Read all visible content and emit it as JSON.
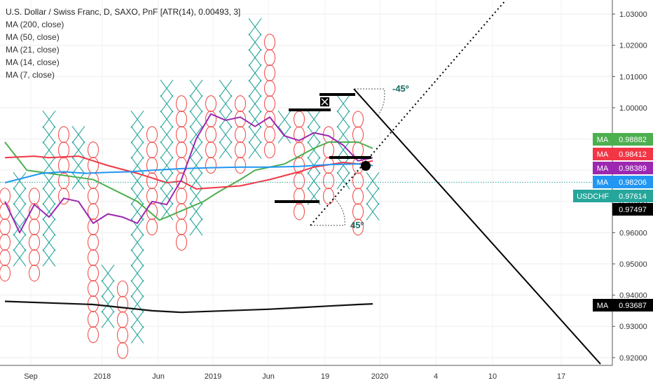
{
  "legend": {
    "symbol": "U.S. Dollar / Swiss Franc, D, SAXO, PnF [ATR(14), 0.00493, 3]",
    "ma200": "MA (200, close)",
    "ma50": "MA (50, close)",
    "ma21": "MA (21, close)",
    "ma14": "MA (14, close)",
    "ma7": "MA (7, close)"
  },
  "colors": {
    "x_mark": "#26a69a",
    "o_mark": "#ef5350",
    "ma200": "#111111",
    "ma50": "#4caf50",
    "ma21": "#f23645",
    "ma14": "#2196f3",
    "ma7": "#9c27b0",
    "trendline": "#000000",
    "arc": "#555555",
    "angle_text": "#1a6b63",
    "price_line": "#26a69a"
  },
  "chart_data": {
    "type": "point-and-figure",
    "box_size": 0.00493,
    "reversal": 3,
    "ylim": [
      0.9175,
      1.0345
    ],
    "y_ticks": [
      "1.03000",
      "1.02000",
      "1.01000",
      "1.00000",
      "0.99000",
      "0.98000",
      "0.97000",
      "0.96000",
      "0.95000",
      "0.94000",
      "0.93000",
      "0.92000"
    ],
    "x_ticks": [
      "Sep",
      "2018",
      "Jun",
      "2019",
      "Jun",
      "19",
      "2020",
      "4",
      "10",
      "17"
    ],
    "columns": [
      {
        "type": "O",
        "high": 0.9717,
        "low": 0.947
      },
      {
        "type": "X",
        "high": 0.9766,
        "low": 0.9519
      },
      {
        "type": "O",
        "high": 0.9717,
        "low": 0.947
      },
      {
        "type": "X",
        "high": 0.9963,
        "low": 0.9519
      },
      {
        "type": "O",
        "high": 0.9914,
        "low": 0.9716
      },
      {
        "type": "X",
        "high": 0.9914,
        "low": 0.9765
      },
      {
        "type": "O",
        "high": 0.9865,
        "low": 0.9273
      },
      {
        "type": "X",
        "high": 0.947,
        "low": 0.9322
      },
      {
        "type": "O",
        "high": 0.942,
        "low": 0.9223
      },
      {
        "type": "X",
        "high": 0.9963,
        "low": 0.9272
      },
      {
        "type": "O",
        "high": 0.9914,
        "low": 0.9618
      },
      {
        "type": "X",
        "high": 1.0062,
        "low": 0.9667
      },
      {
        "type": "O",
        "high": 1.0013,
        "low": 0.9569
      },
      {
        "type": "X",
        "high": 1.0062,
        "low": 0.9618
      },
      {
        "type": "O",
        "high": 1.0013,
        "low": 0.9815
      },
      {
        "type": "X",
        "high": 1.0062,
        "low": 0.9864
      },
      {
        "type": "O",
        "high": 1.0013,
        "low": 0.9815
      },
      {
        "type": "X",
        "high": 1.0259,
        "low": 0.9864
      },
      {
        "type": "O",
        "high": 1.021,
        "low": 0.9865
      },
      {
        "type": "X",
        "high": 0.9963,
        "low": 0.9913
      },
      {
        "type": "O",
        "high": 0.9963,
        "low": 0.9667
      },
      {
        "type": "X",
        "high": 0.9963,
        "low": 0.9717
      },
      {
        "type": "O",
        "high": 0.9914,
        "low": 0.9716
      },
      {
        "type": "X",
        "high": 1.0013,
        "low": 0.9766
      },
      {
        "type": "O",
        "high": 0.9963,
        "low": 0.9618
      },
      {
        "type": "X",
        "high": 0.9766,
        "low": 0.9667
      }
    ],
    "series": [
      {
        "name": "MA (200, close)",
        "points": [
          [
            0.938,
            0
          ],
          [
            0.937,
            6
          ],
          [
            0.935,
            10
          ],
          [
            0.9345,
            12
          ],
          [
            0.9355,
            18
          ],
          [
            0.936,
            20
          ],
          [
            0.9365,
            22
          ],
          [
            0.937,
            24
          ],
          [
            0.9372,
            25
          ]
        ]
      },
      {
        "name": "MA (50, close)",
        "points": [
          [
            0.989,
            0
          ],
          [
            0.98,
            1.5
          ],
          [
            0.979,
            3
          ],
          [
            0.977,
            6
          ],
          [
            0.97,
            9
          ],
          [
            0.964,
            10.5
          ],
          [
            0.967,
            12
          ],
          [
            0.97,
            13.5
          ],
          [
            0.973,
            14.5
          ],
          [
            0.977,
            16
          ],
          [
            0.98,
            17
          ],
          [
            0.982,
            19
          ],
          [
            0.987,
            21
          ],
          [
            0.989,
            22
          ],
          [
            0.989,
            24
          ],
          [
            0.987,
            25
          ]
        ]
      },
      {
        "name": "MA (21, close)",
        "points": [
          [
            0.984,
            0
          ],
          [
            0.9845,
            2
          ],
          [
            0.984,
            3
          ],
          [
            0.9845,
            5
          ],
          [
            0.9815,
            7
          ],
          [
            0.979,
            9
          ],
          [
            0.9775,
            10
          ],
          [
            0.976,
            11
          ],
          [
            0.9765,
            12
          ],
          [
            0.974,
            13
          ],
          [
            0.975,
            16
          ],
          [
            0.977,
            18
          ],
          [
            0.9795,
            20
          ],
          [
            0.981,
            21
          ],
          [
            0.9825,
            23
          ],
          [
            0.982,
            24
          ],
          [
            0.983,
            25
          ]
        ]
      },
      {
        "name": "MA (14, close)",
        "points": [
          [
            0.976,
            0
          ],
          [
            0.979,
            2.5
          ],
          [
            0.9795,
            4
          ],
          [
            0.979,
            5.5
          ],
          [
            0.9793,
            7
          ],
          [
            0.9795,
            8.5
          ],
          [
            0.98,
            10
          ],
          [
            0.9805,
            12
          ],
          [
            0.9808,
            14
          ],
          [
            0.981,
            16
          ],
          [
            0.981,
            18
          ],
          [
            0.9812,
            20
          ],
          [
            0.9818,
            22
          ],
          [
            0.982,
            24
          ],
          [
            0.9815,
            25
          ]
        ]
      },
      {
        "name": "MA (7, close)",
        "points": [
          [
            0.97,
            0
          ],
          [
            0.96,
            1
          ],
          [
            0.969,
            2
          ],
          [
            0.965,
            3
          ],
          [
            0.971,
            4
          ],
          [
            0.97,
            5
          ],
          [
            0.963,
            6
          ],
          [
            0.966,
            7
          ],
          [
            0.965,
            8
          ],
          [
            0.963,
            9
          ],
          [
            0.97,
            10
          ],
          [
            0.969,
            11
          ],
          [
            0.977,
            12
          ],
          [
            0.99,
            13
          ],
          [
            0.998,
            14
          ],
          [
            0.996,
            15
          ],
          [
            0.997,
            16
          ],
          [
            0.994,
            17
          ],
          [
            0.997,
            18
          ],
          [
            0.991,
            19
          ],
          [
            0.9895,
            20
          ],
          [
            0.992,
            21
          ],
          [
            0.991,
            22
          ],
          [
            0.988,
            23
          ],
          [
            0.983,
            24
          ],
          [
            0.984,
            25
          ]
        ]
      }
    ],
    "price_tags": [
      {
        "label": "MA",
        "value": "0.98882",
        "color": "#4caf50"
      },
      {
        "label": "MA",
        "value": "0.98412",
        "color": "#f23645"
      },
      {
        "label": "MA",
        "value": "0.98389",
        "color": "#9c27b0"
      },
      {
        "label": "MA",
        "value": "0.98206",
        "color": "#2196f3"
      },
      {
        "label": "USDCHF",
        "value": "0.97614",
        "color": "#26a69a"
      },
      {
        "label": "",
        "value": "0.97497",
        "color": "#000000"
      },
      {
        "label": "MA",
        "value": "0.93687",
        "color": "#000000"
      }
    ],
    "annotations": [
      {
        "text": "-45º"
      },
      {
        "text": "45º"
      }
    ]
  }
}
